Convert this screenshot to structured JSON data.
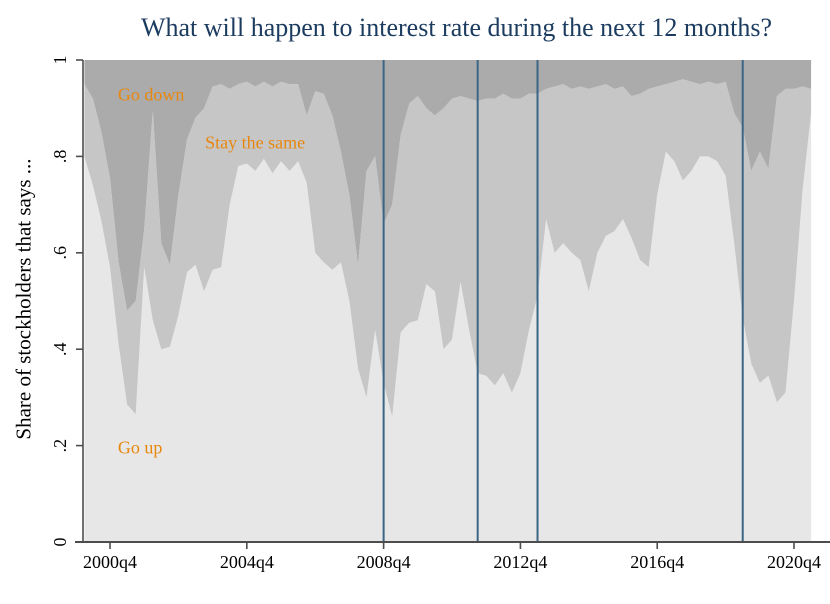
{
  "title": "What will happen to interest rate during the next 12 months?",
  "y_axis": {
    "label": "Share of stockholders that says ...",
    "ticks": [
      {
        "label": "0",
        "value": 0
      },
      {
        "label": ".2",
        "value": 0.2
      },
      {
        "label": ".4",
        "value": 0.4
      },
      {
        "label": ".6",
        "value": 0.6
      },
      {
        "label": ".8",
        "value": 0.8
      },
      {
        "label": "1",
        "value": 1
      }
    ]
  },
  "x_axis": {
    "ticks": [
      {
        "label": "2000q4",
        "value": 2000.75
      },
      {
        "label": "2004q4",
        "value": 2004.75
      },
      {
        "label": "2008q4",
        "value": 2008.75
      },
      {
        "label": "2012q4",
        "value": 2012.75
      },
      {
        "label": "2016q4",
        "value": 2016.75
      },
      {
        "label": "2020q4",
        "value": 2020.75
      }
    ]
  },
  "annotations": [
    {
      "label": "Go down",
      "t": 2000.98,
      "value": 0.927
    },
    {
      "label": "Stay the same",
      "t": 2003.53,
      "value": 0.828
    },
    {
      "label": "Go up",
      "t": 2000.98,
      "value": 0.195
    }
  ],
  "vlines": [
    {
      "quarter": "2008q4",
      "t": 2008.75
    },
    {
      "quarter": "2011q3",
      "t": 2011.5
    },
    {
      "quarter": "2013q2",
      "t": 2013.25
    },
    {
      "quarter": "2019q2",
      "t": 2019.25
    }
  ],
  "colors": {
    "go_up_area": "#e7e7e7",
    "stay_same_area": "#c6c6c6",
    "go_down_area": "#ababab",
    "event_line": "#3a6585",
    "title_text": "#1b3b5f",
    "annotation_text": "#e8870e",
    "axis_line": "#4d4d4d",
    "tick_text": "#000000"
  },
  "chart_data": {
    "type": "area",
    "stacked": true,
    "title": "What will happen to interest rate during the next 12 months?",
    "xlabel": "",
    "ylabel": "Share of stockholders that says ...",
    "ylim": [
      0,
      1
    ],
    "xlim_quarters": [
      "2000q1",
      "2021q2"
    ],
    "legend_position": "in-plot text annotations",
    "grid": false,
    "categories": [
      "2000q1",
      "2000q2",
      "2000q3",
      "2000q4",
      "2001q1",
      "2001q2",
      "2001q3",
      "2001q4",
      "2002q1",
      "2002q2",
      "2002q3",
      "2002q4",
      "2003q1",
      "2003q2",
      "2003q3",
      "2003q4",
      "2004q1",
      "2004q2",
      "2004q3",
      "2004q4",
      "2005q1",
      "2005q2",
      "2005q3",
      "2005q4",
      "2006q1",
      "2006q2",
      "2006q3",
      "2006q4",
      "2007q1",
      "2007q2",
      "2007q3",
      "2007q4",
      "2008q1",
      "2008q2",
      "2008q3",
      "2008q4",
      "2009q1",
      "2009q2",
      "2009q3",
      "2009q4",
      "2010q1",
      "2010q2",
      "2010q3",
      "2010q4",
      "2011q1",
      "2011q2",
      "2011q3",
      "2011q4",
      "2012q1",
      "2012q2",
      "2012q3",
      "2012q4",
      "2013q1",
      "2013q2",
      "2013q3",
      "2013q4",
      "2014q1",
      "2014q2",
      "2014q3",
      "2014q4",
      "2015q1",
      "2015q2",
      "2015q3",
      "2015q4",
      "2016q1",
      "2016q2",
      "2016q3",
      "2016q4",
      "2017q1",
      "2017q2",
      "2017q3",
      "2017q4",
      "2018q1",
      "2018q2",
      "2018q3",
      "2018q4",
      "2019q1",
      "2019q2",
      "2019q3",
      "2019q4",
      "2020q1",
      "2020q2",
      "2020q3",
      "2020q4",
      "2021q1",
      "2021q2"
    ],
    "series": [
      {
        "name": "Go up",
        "values": [
          0.8,
          0.74,
          0.665,
          0.57,
          0.41,
          0.285,
          0.265,
          0.57,
          0.46,
          0.4,
          0.405,
          0.47,
          0.56,
          0.575,
          0.52,
          0.565,
          0.57,
          0.7,
          0.78,
          0.785,
          0.77,
          0.795,
          0.765,
          0.79,
          0.77,
          0.79,
          0.745,
          0.6,
          0.58,
          0.565,
          0.58,
          0.5,
          0.36,
          0.3,
          0.44,
          0.33,
          0.26,
          0.435,
          0.455,
          0.46,
          0.535,
          0.52,
          0.4,
          0.42,
          0.54,
          0.44,
          0.35,
          0.345,
          0.325,
          0.35,
          0.31,
          0.35,
          0.44,
          0.51,
          0.67,
          0.6,
          0.62,
          0.6,
          0.585,
          0.52,
          0.6,
          0.635,
          0.645,
          0.67,
          0.63,
          0.585,
          0.57,
          0.72,
          0.81,
          0.79,
          0.75,
          0.77,
          0.8,
          0.8,
          0.79,
          0.76,
          0.62,
          0.465,
          0.37,
          0.33,
          0.345,
          0.29,
          0.31,
          0.5,
          0.73,
          0.89
        ]
      },
      {
        "name": "Stay the same",
        "values": [
          0.15,
          0.18,
          0.185,
          0.185,
          0.17,
          0.195,
          0.235,
          0.08,
          0.435,
          0.22,
          0.17,
          0.25,
          0.275,
          0.305,
          0.38,
          0.38,
          0.38,
          0.24,
          0.17,
          0.17,
          0.175,
          0.16,
          0.18,
          0.165,
          0.18,
          0.16,
          0.14,
          0.335,
          0.35,
          0.32,
          0.23,
          0.22,
          0.215,
          0.47,
          0.36,
          0.33,
          0.44,
          0.41,
          0.455,
          0.465,
          0.365,
          0.365,
          0.5,
          0.5,
          0.385,
          0.48,
          0.565,
          0.575,
          0.595,
          0.58,
          0.61,
          0.57,
          0.49,
          0.42,
          0.27,
          0.345,
          0.33,
          0.34,
          0.36,
          0.42,
          0.345,
          0.315,
          0.295,
          0.275,
          0.295,
          0.345,
          0.37,
          0.225,
          0.14,
          0.165,
          0.21,
          0.185,
          0.15,
          0.155,
          0.16,
          0.195,
          0.27,
          0.395,
          0.4,
          0.48,
          0.43,
          0.635,
          0.63,
          0.44,
          0.215,
          0.05
        ]
      },
      {
        "name": "Go down",
        "values": [
          0.05,
          0.08,
          0.15,
          0.245,
          0.42,
          0.52,
          0.5,
          0.35,
          0.105,
          0.38,
          0.425,
          0.28,
          0.165,
          0.12,
          0.1,
          0.055,
          0.05,
          0.06,
          0.05,
          0.045,
          0.055,
          0.045,
          0.055,
          0.045,
          0.05,
          0.05,
          0.115,
          0.065,
          0.07,
          0.115,
          0.19,
          0.28,
          0.425,
          0.23,
          0.2,
          0.34,
          0.3,
          0.155,
          0.09,
          0.075,
          0.1,
          0.115,
          0.1,
          0.08,
          0.075,
          0.08,
          0.085,
          0.08,
          0.08,
          0.07,
          0.08,
          0.08,
          0.07,
          0.07,
          0.06,
          0.055,
          0.05,
          0.06,
          0.055,
          0.06,
          0.055,
          0.05,
          0.06,
          0.055,
          0.075,
          0.07,
          0.06,
          0.055,
          0.05,
          0.045,
          0.04,
          0.045,
          0.05,
          0.045,
          0.05,
          0.045,
          0.11,
          0.14,
          0.23,
          0.19,
          0.225,
          0.075,
          0.06,
          0.06,
          0.055,
          0.06
        ]
      }
    ],
    "event_lines_quarters": [
      "2008q4",
      "2011q3",
      "2013q2",
      "2019q2"
    ]
  }
}
